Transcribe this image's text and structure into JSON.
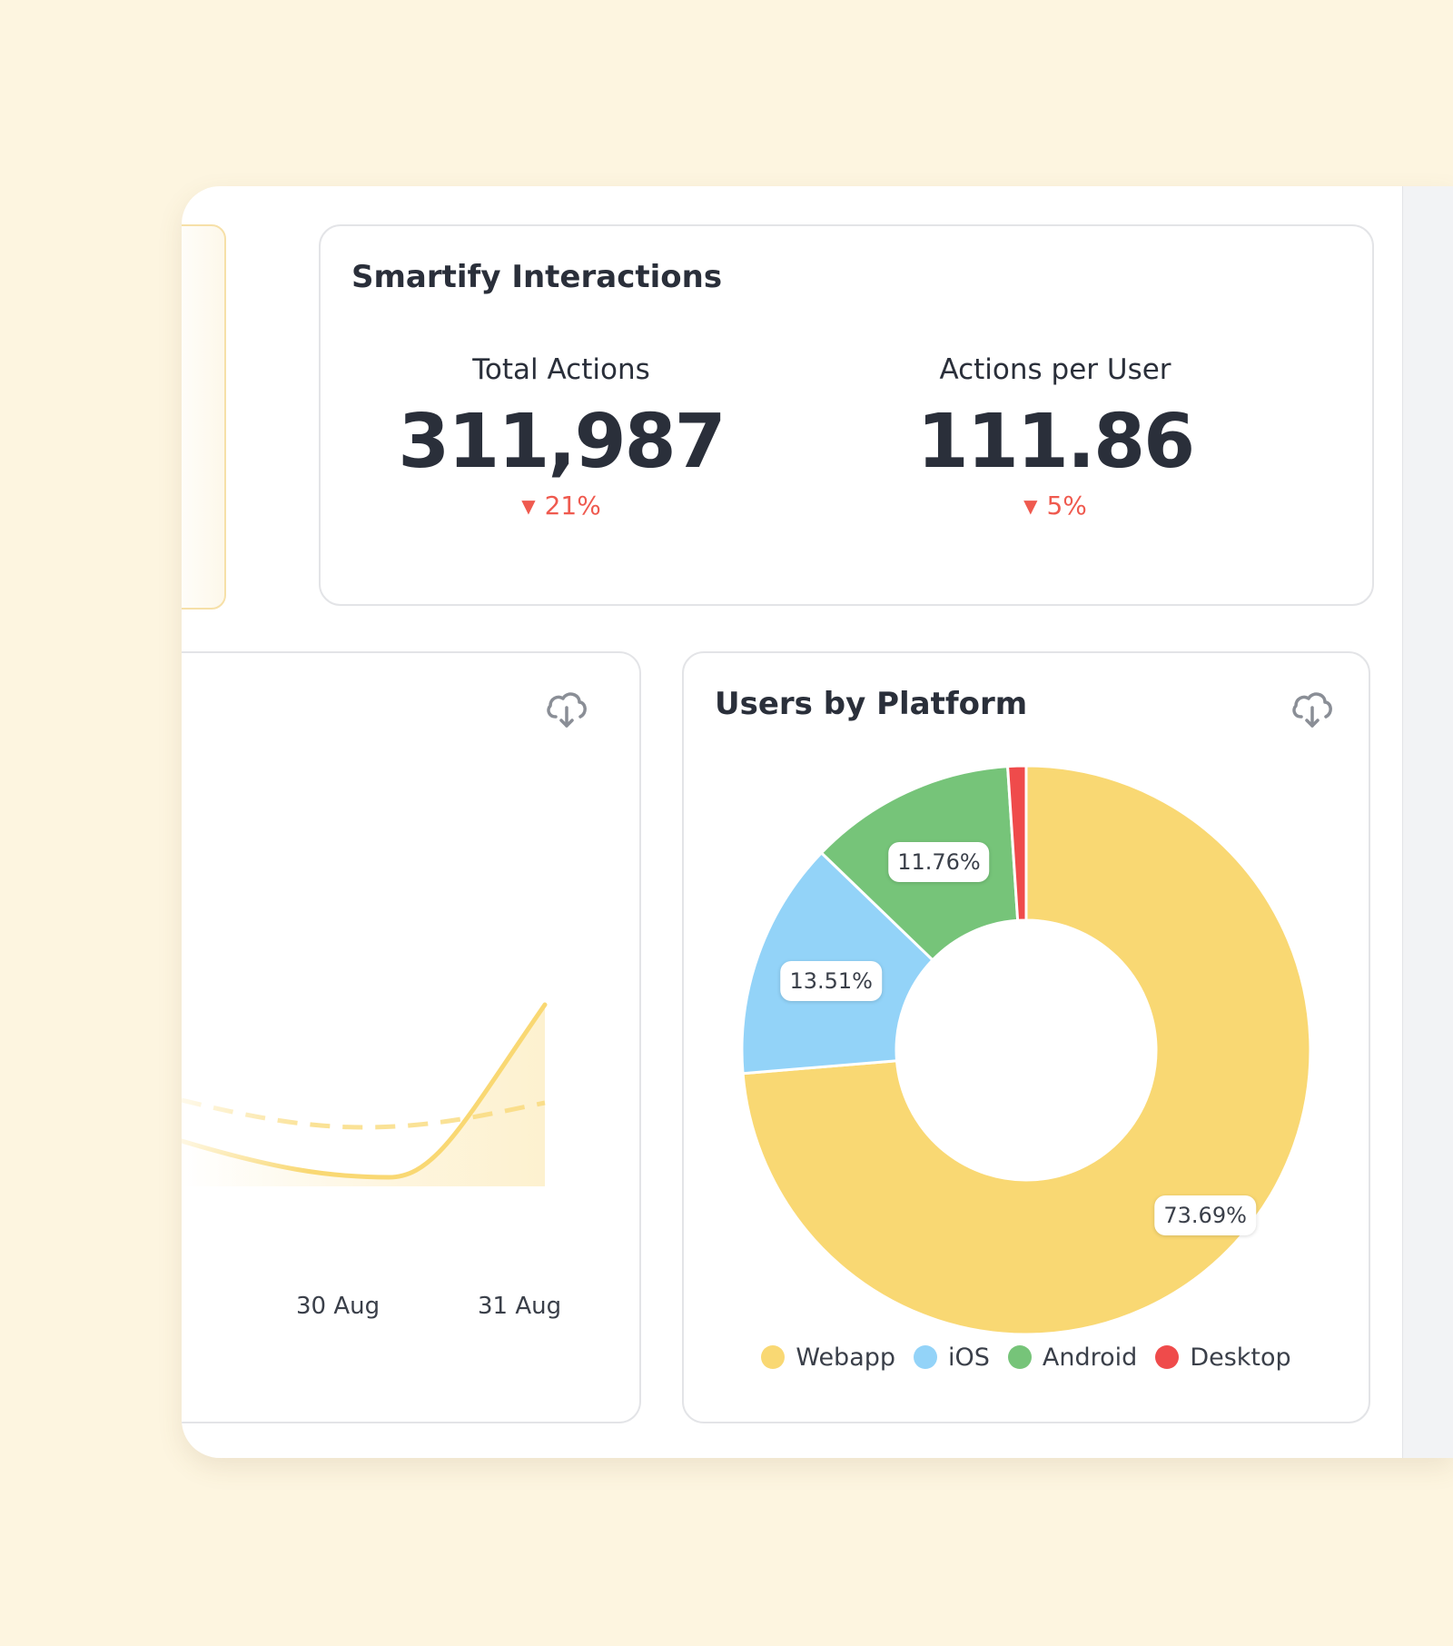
{
  "interactions": {
    "title": "Smartify Interactions",
    "metrics": [
      {
        "label": "Total Actions",
        "value": "311,987",
        "change": "21%",
        "direction": "down"
      },
      {
        "label": "Actions per User",
        "value": "111.86",
        "change": "5%",
        "direction": "down"
      }
    ]
  },
  "line_chart": {
    "download_icon": "cloud-download-icon",
    "x_labels": [
      "30 Aug",
      "31 Aug"
    ]
  },
  "platform": {
    "title": "Users by Platform",
    "download_icon": "cloud-download-icon"
  },
  "chart_data": [
    {
      "type": "line",
      "title": "",
      "x": [
        "30 Aug",
        "31 Aug"
      ],
      "series": [
        {
          "values": [
            null,
            null
          ],
          "style": "solid",
          "fill": "area"
        },
        {
          "values": [
            null,
            null
          ],
          "style": "dashed"
        }
      ]
    },
    {
      "type": "pie",
      "title": "Users by Platform",
      "donut": true,
      "categories": [
        "Webapp",
        "iOS",
        "Android",
        "Desktop"
      ],
      "values": [
        73.69,
        13.51,
        11.76,
        1.04
      ],
      "labels": [
        "73.69%",
        "13.51%",
        "11.76%",
        ""
      ],
      "colors": [
        "#f9d873",
        "#93d3f8",
        "#76c479",
        "#ef4b4b"
      ],
      "legend": "bottom"
    }
  ],
  "colors": {
    "accent_yellow": "#f9d873",
    "negative": "#ef5a4f",
    "background": "#fdf5e0"
  }
}
